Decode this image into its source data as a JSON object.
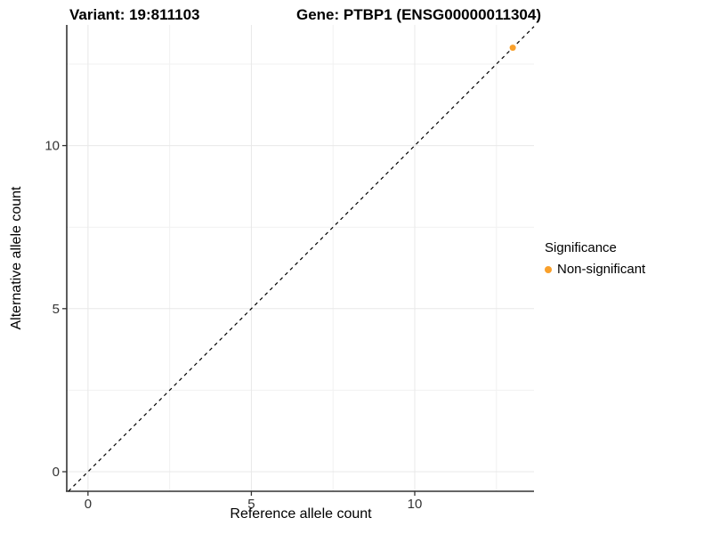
{
  "titles": {
    "variant": "Variant: 19:811103",
    "gene": "Gene: PTBP1 (ENSG00000011304)"
  },
  "chart_data": {
    "type": "scatter",
    "title_left": "Variant: 19:811103",
    "title_right": "Gene: PTBP1 (ENSG00000011304)",
    "xlabel": "Reference allele count",
    "ylabel": "Alternative allele count",
    "xlim": [
      -0.65,
      13.65
    ],
    "ylim": [
      -0.6,
      13.7
    ],
    "x_ticks": [
      0,
      5,
      10
    ],
    "y_ticks": [
      0,
      5,
      10
    ],
    "x_minor_gridlines": [
      2.5,
      7.5,
      12.5
    ],
    "y_minor_gridlines": [
      2.5,
      7.5,
      12.5
    ],
    "grid": true,
    "identity_line": {
      "type": "abline",
      "slope": 1,
      "intercept": 0,
      "style": "dashed",
      "color": "#000000"
    },
    "series": [
      {
        "name": "Non-significant",
        "color": "#F9A02B",
        "points": [
          {
            "x": 13,
            "y": 13
          }
        ]
      }
    ],
    "legend": {
      "title": "Significance",
      "position": "right",
      "entries": [
        {
          "label": "Non-significant",
          "color": "#F9A02B"
        }
      ]
    },
    "colors": {
      "major_grid": "#E8E8E8",
      "minor_grid": "#F1F1F1",
      "axis_line": "#333333",
      "tick_text": "#333333",
      "point": "#F9A02B"
    }
  }
}
